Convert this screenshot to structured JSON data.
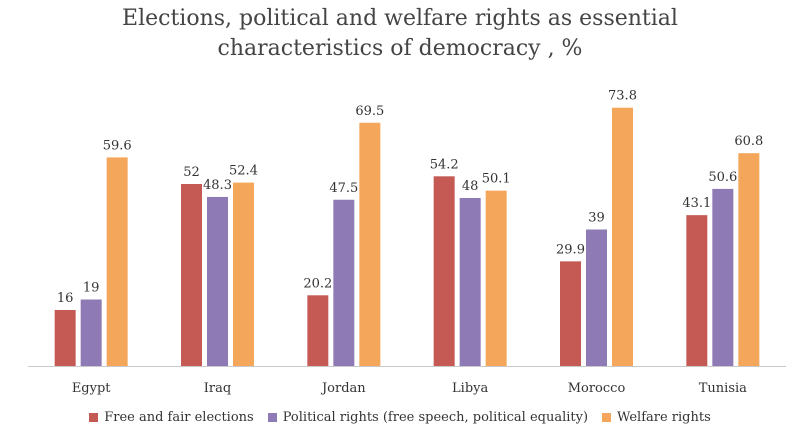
{
  "chart_data": {
    "type": "bar",
    "title_line1": "Elections, political and welfare rights as essential",
    "title_line2": "characteristics of democracy , %",
    "categories": [
      "Egypt",
      "Iraq",
      "Jordan",
      "Libya",
      "Morocco",
      "Tunisia"
    ],
    "series": [
      {
        "name": "Free and fair elections",
        "color": "#c55a55",
        "values": [
          16,
          52,
          20.2,
          54.2,
          29.9,
          43.1
        ]
      },
      {
        "name": "Political rights (free speech, political equality)",
        "color": "#8e7bb5",
        "values": [
          19,
          48.3,
          47.5,
          48,
          39,
          50.6
        ]
      },
      {
        "name": "Welfare rights",
        "color": "#f4a65a",
        "values": [
          59.6,
          52.4,
          69.5,
          50.1,
          73.8,
          60.8
        ]
      }
    ],
    "ylim": [
      0,
      80
    ],
    "grid": false,
    "legend_position": "bottom"
  }
}
